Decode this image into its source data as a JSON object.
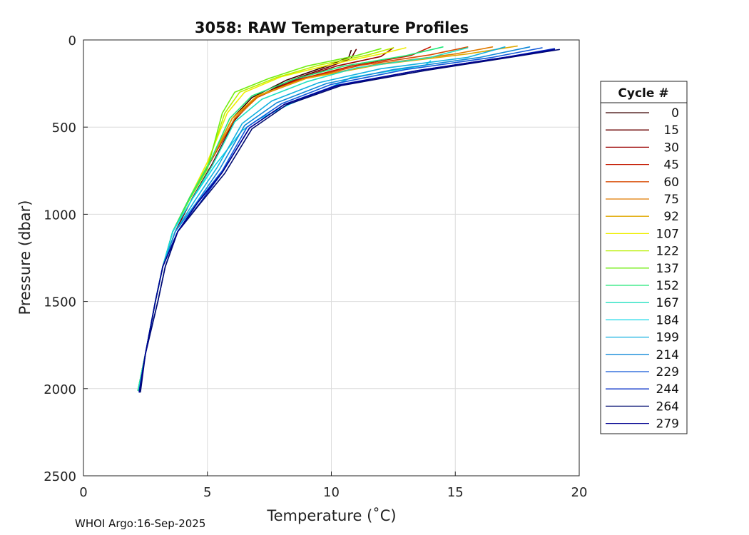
{
  "chart_data": {
    "type": "line",
    "title": "3058: RAW Temperature Profiles",
    "xlabel": "Temperature (˚C)",
    "ylabel": "Pressure (dbar)",
    "xlim": [
      0,
      20
    ],
    "ylim": [
      0,
      2500
    ],
    "y_reversed": true,
    "x_ticks": [
      0,
      5,
      10,
      15,
      20
    ],
    "y_ticks": [
      0,
      500,
      1000,
      1500,
      2000,
      2500
    ],
    "grid": true,
    "legend": {
      "title": "Cycle #",
      "placement": "right-outside",
      "entries": [
        {
          "label": "0",
          "color": "#3a0000"
        },
        {
          "label": "15",
          "color": "#6a0000"
        },
        {
          "label": "30",
          "color": "#9a0000"
        },
        {
          "label": "45",
          "color": "#c41a00"
        },
        {
          "label": "60",
          "color": "#d84a00"
        },
        {
          "label": "75",
          "color": "#e07a00"
        },
        {
          "label": "92",
          "color": "#e0a800"
        },
        {
          "label": "107",
          "color": "#eeee00"
        },
        {
          "label": "122",
          "color": "#b8f000"
        },
        {
          "label": "137",
          "color": "#70ee10"
        },
        {
          "label": "152",
          "color": "#20e878"
        },
        {
          "label": "167",
          "color": "#20e0c0"
        },
        {
          "label": "184",
          "color": "#10d8e8"
        },
        {
          "label": "199",
          "color": "#10b0e0"
        },
        {
          "label": "214",
          "color": "#1088d8"
        },
        {
          "label": "229",
          "color": "#1058d8"
        },
        {
          "label": "244",
          "color": "#0830c8"
        },
        {
          "label": "264",
          "color": "#000a70"
        },
        {
          "label": "279",
          "color": "#000090"
        }
      ]
    },
    "series": [
      {
        "name": "0",
        "x": [
          10.8,
          10.7,
          9.8,
          8.2,
          6.8,
          6.0,
          5.1,
          4.3,
          3.6,
          3.2,
          2.9,
          2.5,
          2.2
        ],
        "y": [
          60,
          100,
          150,
          230,
          330,
          450,
          700,
          900,
          1100,
          1300,
          1500,
          1800,
          2010
        ]
      },
      {
        "name": "15",
        "x": [
          11.0,
          10.8,
          9.9,
          8.3,
          6.9,
          6.1,
          5.2,
          4.4,
          3.7,
          3.2,
          2.9,
          2.5,
          2.25
        ],
        "y": [
          55,
          105,
          155,
          235,
          335,
          460,
          710,
          905,
          1100,
          1300,
          1500,
          1800,
          2015
        ]
      },
      {
        "name": "30",
        "x": [
          12.5,
          12.0,
          10.2,
          8.5,
          7.0,
          6.1,
          5.1,
          4.3,
          3.6,
          3.2,
          2.9,
          2.5,
          2.2
        ],
        "y": [
          45,
          95,
          150,
          230,
          330,
          455,
          705,
          900,
          1100,
          1300,
          1500,
          1800,
          2010
        ]
      },
      {
        "name": "45",
        "x": [
          14.0,
          13.2,
          10.8,
          8.6,
          7.0,
          6.0,
          5.1,
          4.3,
          3.6,
          3.2,
          2.9,
          2.5,
          2.2
        ],
        "y": [
          40,
          90,
          150,
          230,
          330,
          450,
          700,
          900,
          1100,
          1300,
          1500,
          1800,
          2010
        ]
      },
      {
        "name": "60",
        "x": [
          15.5,
          14.0,
          11.2,
          8.8,
          7.0,
          6.0,
          5.1,
          4.3,
          3.6,
          3.2,
          2.9,
          2.5,
          2.2
        ],
        "y": [
          40,
          85,
          145,
          225,
          325,
          450,
          700,
          900,
          1100,
          1300,
          1500,
          1800,
          2010
        ]
      },
      {
        "name": "75",
        "x": [
          16.5,
          15.0,
          11.8,
          9.0,
          7.1,
          6.1,
          5.1,
          4.3,
          3.6,
          3.2,
          2.9,
          2.5,
          2.2
        ],
        "y": [
          40,
          80,
          140,
          220,
          320,
          450,
          700,
          900,
          1100,
          1300,
          1500,
          1800,
          2010
        ]
      },
      {
        "name": "92",
        "x": [
          17.5,
          15.5,
          12.0,
          9.0,
          7.0,
          6.0,
          5.1,
          4.3,
          3.6,
          3.2,
          2.9,
          2.5,
          2.2
        ],
        "y": [
          35,
          80,
          140,
          220,
          320,
          450,
          700,
          900,
          1100,
          1300,
          1500,
          1800,
          2010
        ]
      },
      {
        "name": "107",
        "x": [
          13.0,
          12.0,
          10.0,
          8.0,
          6.5,
          5.8,
          5.0,
          4.3,
          3.6,
          3.2,
          2.9,
          2.5,
          2.2
        ],
        "y": [
          45,
          80,
          140,
          210,
          300,
          420,
          700,
          900,
          1100,
          1300,
          1500,
          1800,
          2010
        ]
      },
      {
        "name": "122",
        "x": [
          12.5,
          11.5,
          9.5,
          7.8,
          6.3,
          5.7,
          5.0,
          4.3,
          3.6,
          3.2,
          2.9,
          2.5,
          2.2
        ],
        "y": [
          45,
          85,
          145,
          215,
          300,
          420,
          720,
          900,
          1100,
          1300,
          1500,
          1800,
          2010
        ]
      },
      {
        "name": "137",
        "x": [
          12.0,
          11.0,
          9.0,
          7.5,
          6.1,
          5.6,
          5.0,
          4.3,
          3.6,
          3.2,
          2.9,
          2.5,
          2.2
        ],
        "y": [
          50,
          90,
          150,
          220,
          300,
          420,
          740,
          910,
          1100,
          1300,
          1500,
          1800,
          2010
        ]
      },
      {
        "name": "152",
        "x": [
          14.5,
          13.0,
          10.5,
          8.5,
          6.8,
          5.9,
          5.1,
          4.3,
          3.6,
          3.2,
          2.9,
          2.5,
          2.2
        ],
        "y": [
          40,
          90,
          150,
          225,
          320,
          450,
          700,
          900,
          1100,
          1300,
          1500,
          1800,
          2010
        ]
      },
      {
        "name": "167",
        "x": [
          15.5,
          14.0,
          11.0,
          9.0,
          7.2,
          6.1,
          5.2,
          4.4,
          3.6,
          3.2,
          2.9,
          2.5,
          2.2
        ],
        "y": [
          45,
          100,
          160,
          240,
          340,
          470,
          720,
          910,
          1100,
          1300,
          1500,
          1800,
          2010
        ]
      },
      {
        "name": "184",
        "x": [
          14.0,
          13.8,
          10.8,
          10.0,
          8.3,
          7.0,
          6.4,
          5.3,
          4.4,
          3.6,
          3.2,
          2.9,
          2.5,
          2.25
        ],
        "y": [
          120,
          145,
          215,
          270,
          370,
          460,
          520,
          720,
          910,
          1100,
          1300,
          1500,
          1800,
          2020
        ]
      },
      {
        "name": "199",
        "x": [
          17.0,
          15.5,
          12.0,
          9.5,
          7.6,
          6.4,
          5.4,
          4.5,
          3.7,
          3.2,
          2.9,
          2.5,
          2.25
        ],
        "y": [
          40,
          100,
          165,
          245,
          350,
          480,
          730,
          920,
          1100,
          1300,
          1500,
          1800,
          2015
        ]
      },
      {
        "name": "214",
        "x": [
          18.0,
          16.0,
          12.5,
          9.8,
          7.8,
          6.5,
          5.5,
          4.6,
          3.7,
          3.2,
          2.9,
          2.5,
          2.25
        ],
        "y": [
          40,
          100,
          170,
          250,
          360,
          490,
          740,
          925,
          1100,
          1300,
          1500,
          1800,
          2015
        ]
      },
      {
        "name": "229",
        "x": [
          18.5,
          16.5,
          13.0,
          10.0,
          8.0,
          6.6,
          5.6,
          4.6,
          3.8,
          3.2,
          2.9,
          2.5,
          2.25
        ],
        "y": [
          45,
          100,
          170,
          255,
          365,
          500,
          750,
          930,
          1100,
          1300,
          1500,
          1800,
          2015
        ]
      },
      {
        "name": "244",
        "x": [
          19.0,
          17.0,
          13.5,
          10.2,
          8.1,
          6.7,
          5.6,
          4.7,
          3.8,
          3.3,
          3.0,
          2.5,
          2.25
        ],
        "y": [
          50,
          100,
          175,
          260,
          370,
          505,
          760,
          935,
          1100,
          1300,
          1500,
          1800,
          2015
        ]
      },
      {
        "name": "264",
        "x": [
          19.2,
          17.2,
          13.8,
          10.4,
          8.2,
          6.8,
          5.7,
          4.7,
          3.8,
          3.3,
          3.0,
          2.5,
          2.3
        ],
        "y": [
          55,
          100,
          175,
          262,
          372,
          510,
          765,
          940,
          1100,
          1300,
          1500,
          1800,
          2020
        ]
      },
      {
        "name": "279",
        "x": [
          19.0,
          17.0,
          13.5,
          10.3,
          8.1,
          6.7,
          5.6,
          4.6,
          3.8,
          3.2,
          2.9,
          2.5,
          2.25
        ],
        "y": [
          55,
          100,
          175,
          260,
          370,
          505,
          760,
          935,
          1100,
          1300,
          1500,
          1800,
          2020
        ]
      }
    ]
  },
  "footer": {
    "text": "WHOI Argo:16-Sep-2025"
  }
}
